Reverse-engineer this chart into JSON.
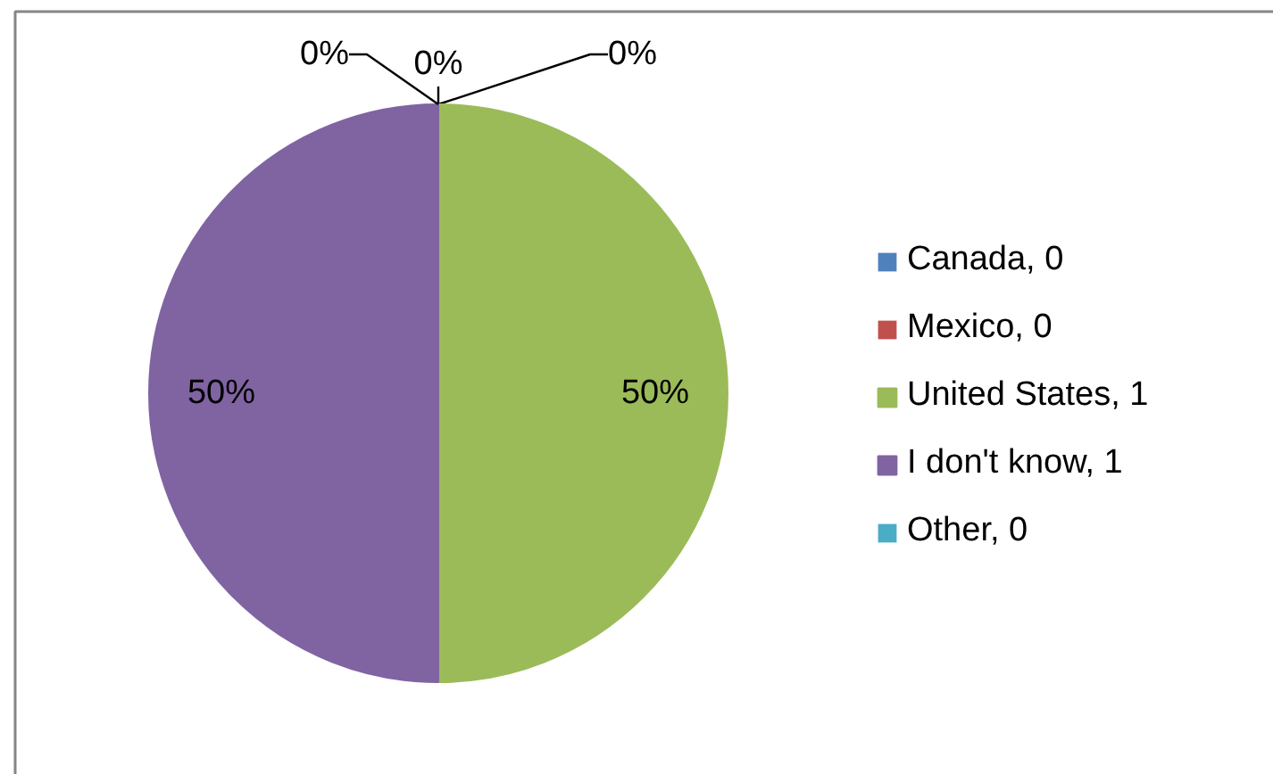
{
  "chart_data": {
    "type": "pie",
    "categories": [
      "Canada, 0",
      "Mexico, 0",
      "United States, 1",
      "I don't know, 1",
      "Other, 0"
    ],
    "values": [
      0,
      0,
      50,
      50,
      0
    ],
    "colors": [
      "#4f81bd",
      "#c0504d",
      "#9bbb59",
      "#8064a2",
      "#4bacc6"
    ],
    "value_labels": [
      "0%",
      "0%",
      "50%",
      "50%",
      "0%"
    ],
    "legend": "right"
  }
}
